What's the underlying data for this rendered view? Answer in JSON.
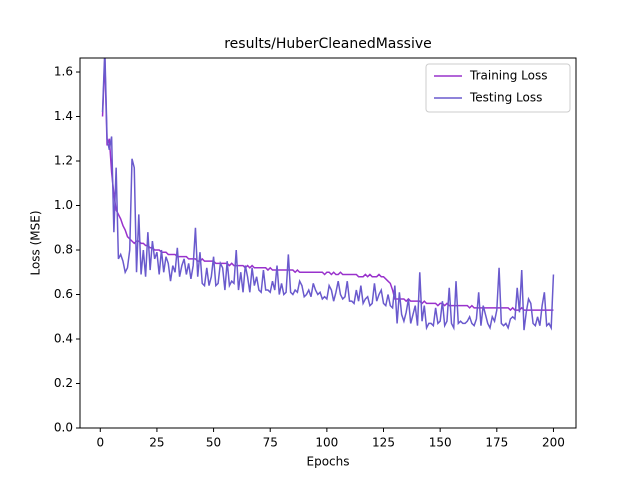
{
  "chart_data": {
    "type": "line",
    "title": "results/HuberCleanedMassive",
    "xlabel": "Epochs",
    "ylabel": "Loss (MSE)",
    "x": [
      1,
      2,
      3,
      4,
      5,
      6,
      7,
      8,
      9,
      10,
      11,
      12,
      13,
      14,
      15,
      16,
      17,
      18,
      19,
      20,
      21,
      22,
      23,
      24,
      25,
      26,
      27,
      28,
      29,
      30,
      31,
      32,
      33,
      34,
      35,
      36,
      37,
      38,
      39,
      40,
      41,
      42,
      43,
      44,
      45,
      46,
      47,
      48,
      49,
      50,
      51,
      52,
      53,
      54,
      55,
      56,
      57,
      58,
      59,
      60,
      61,
      62,
      63,
      64,
      65,
      66,
      67,
      68,
      69,
      70,
      71,
      72,
      73,
      74,
      75,
      76,
      77,
      78,
      79,
      80,
      81,
      82,
      83,
      84,
      85,
      86,
      87,
      88,
      89,
      90,
      91,
      92,
      93,
      94,
      95,
      96,
      97,
      98,
      99,
      100,
      101,
      102,
      103,
      104,
      105,
      106,
      107,
      108,
      109,
      110,
      111,
      112,
      113,
      114,
      115,
      116,
      117,
      118,
      119,
      120,
      121,
      122,
      123,
      124,
      125,
      126,
      127,
      128,
      129,
      130,
      131,
      132,
      133,
      134,
      135,
      136,
      137,
      138,
      139,
      140,
      141,
      142,
      143,
      144,
      145,
      146,
      147,
      148,
      149,
      150,
      151,
      152,
      153,
      154,
      155,
      156,
      157,
      158,
      159,
      160,
      161,
      162,
      163,
      164,
      165,
      166,
      167,
      168,
      169,
      170,
      171,
      172,
      173,
      174,
      175,
      176,
      177,
      178,
      179,
      180,
      181,
      182,
      183,
      184,
      185,
      186,
      187,
      188,
      189,
      190,
      191,
      192,
      193,
      194,
      195,
      196,
      197,
      198,
      199,
      200
    ],
    "series": [
      {
        "name": "Training Loss",
        "color": "#9932cc",
        "values": [
          1.4,
          1.66,
          1.27,
          1.3,
          1.15,
          1.05,
          0.98,
          0.96,
          0.94,
          0.91,
          0.89,
          0.86,
          0.85,
          0.84,
          0.83,
          0.84,
          0.84,
          0.83,
          0.83,
          0.82,
          0.82,
          0.81,
          0.81,
          0.8,
          0.8,
          0.8,
          0.79,
          0.79,
          0.79,
          0.78,
          0.78,
          0.78,
          0.78,
          0.77,
          0.77,
          0.77,
          0.77,
          0.77,
          0.76,
          0.76,
          0.76,
          0.76,
          0.75,
          0.75,
          0.76,
          0.75,
          0.75,
          0.75,
          0.75,
          0.75,
          0.74,
          0.74,
          0.74,
          0.74,
          0.74,
          0.74,
          0.73,
          0.74,
          0.73,
          0.73,
          0.73,
          0.73,
          0.73,
          0.72,
          0.73,
          0.72,
          0.73,
          0.72,
          0.72,
          0.72,
          0.72,
          0.72,
          0.72,
          0.71,
          0.72,
          0.71,
          0.71,
          0.71,
          0.71,
          0.71,
          0.71,
          0.71,
          0.71,
          0.71,
          0.71,
          0.7,
          0.71,
          0.7,
          0.7,
          0.7,
          0.7,
          0.7,
          0.7,
          0.7,
          0.7,
          0.7,
          0.7,
          0.7,
          0.69,
          0.7,
          0.7,
          0.69,
          0.7,
          0.69,
          0.69,
          0.7,
          0.69,
          0.69,
          0.69,
          0.69,
          0.69,
          0.69,
          0.69,
          0.68,
          0.68,
          0.68,
          0.69,
          0.68,
          0.69,
          0.68,
          0.68,
          0.68,
          0.69,
          0.68,
          0.68,
          0.67,
          0.66,
          0.65,
          0.62,
          0.58,
          0.58,
          0.58,
          0.58,
          0.58,
          0.57,
          0.58,
          0.57,
          0.57,
          0.57,
          0.57,
          0.57,
          0.56,
          0.57,
          0.56,
          0.56,
          0.56,
          0.56,
          0.56,
          0.55,
          0.56,
          0.56,
          0.55,
          0.56,
          0.55,
          0.55,
          0.55,
          0.55,
          0.55,
          0.55,
          0.55,
          0.55,
          0.55,
          0.54,
          0.55,
          0.54,
          0.54,
          0.54,
          0.54,
          0.54,
          0.54,
          0.54,
          0.54,
          0.54,
          0.54,
          0.54,
          0.54,
          0.54,
          0.54,
          0.54,
          0.54,
          0.53,
          0.54,
          0.53,
          0.53,
          0.53,
          0.54,
          0.53,
          0.53,
          0.53,
          0.53,
          0.53,
          0.53,
          0.53,
          0.53,
          0.53,
          0.53,
          0.53,
          0.53,
          0.53,
          0.53
        ]
      },
      {
        "name": "Testing Loss",
        "color": "#6a5acd",
        "values": [
          1.42,
          1.7,
          1.3,
          1.25,
          1.31,
          0.88,
          1.17,
          0.76,
          0.78,
          0.75,
          0.7,
          0.72,
          0.8,
          1.21,
          1.17,
          0.7,
          0.96,
          0.69,
          0.8,
          0.68,
          0.88,
          0.71,
          0.84,
          0.76,
          0.79,
          0.69,
          0.8,
          0.7,
          0.77,
          0.74,
          0.66,
          0.73,
          0.7,
          0.81,
          0.68,
          0.73,
          0.76,
          0.69,
          0.74,
          0.67,
          0.73,
          0.9,
          0.68,
          0.79,
          0.65,
          0.64,
          0.72,
          0.64,
          0.68,
          0.77,
          0.64,
          0.65,
          0.74,
          0.72,
          0.62,
          0.75,
          0.64,
          0.66,
          0.65,
          0.8,
          0.62,
          0.7,
          0.61,
          0.73,
          0.68,
          0.61,
          0.72,
          0.64,
          0.68,
          0.62,
          0.61,
          0.71,
          0.62,
          0.62,
          0.61,
          0.66,
          0.62,
          0.73,
          0.6,
          0.65,
          0.6,
          0.61,
          0.78,
          0.61,
          0.6,
          0.62,
          0.61,
          0.66,
          0.64,
          0.59,
          0.6,
          0.62,
          0.59,
          0.65,
          0.62,
          0.6,
          0.61,
          0.58,
          0.59,
          0.58,
          0.64,
          0.62,
          0.57,
          0.61,
          0.66,
          0.6,
          0.58,
          0.59,
          0.66,
          0.57,
          0.57,
          0.56,
          0.62,
          0.57,
          0.64,
          0.56,
          0.58,
          0.59,
          0.55,
          0.56,
          0.65,
          0.57,
          0.6,
          0.62,
          0.56,
          0.55,
          0.6,
          0.55,
          0.54,
          0.64,
          0.47,
          0.61,
          0.51,
          0.48,
          0.52,
          0.58,
          0.47,
          0.51,
          0.55,
          0.46,
          0.7,
          0.48,
          0.55,
          0.45,
          0.47,
          0.47,
          0.46,
          0.54,
          0.47,
          0.48,
          0.57,
          0.46,
          0.48,
          0.63,
          0.47,
          0.45,
          0.66,
          0.47,
          0.48,
          0.47,
          0.47,
          0.48,
          0.5,
          0.47,
          0.46,
          0.49,
          0.61,
          0.46,
          0.55,
          0.51,
          0.47,
          0.45,
          0.5,
          0.48,
          0.53,
          0.72,
          0.47,
          0.46,
          0.47,
          0.45,
          0.49,
          0.5,
          0.49,
          0.63,
          0.52,
          0.71,
          0.44,
          0.52,
          0.58,
          0.56,
          0.47,
          0.46,
          0.5,
          0.46,
          0.55,
          0.61,
          0.46,
          0.47,
          0.45,
          0.69
        ]
      }
    ],
    "xlim": [
      -8.95,
      209.95
    ],
    "xticks": [
      0,
      25,
      50,
      75,
      100,
      125,
      150,
      175,
      200
    ],
    "ylim": [
      0,
      1.663
    ],
    "yticks": [
      {
        "value": 0,
        "label": "0.0"
      },
      0.2,
      0.4,
      0.6,
      0.8,
      {
        "value": 1,
        "label": "1.0"
      },
      1.2,
      1.4,
      1.6
    ],
    "legend": "upper right"
  }
}
